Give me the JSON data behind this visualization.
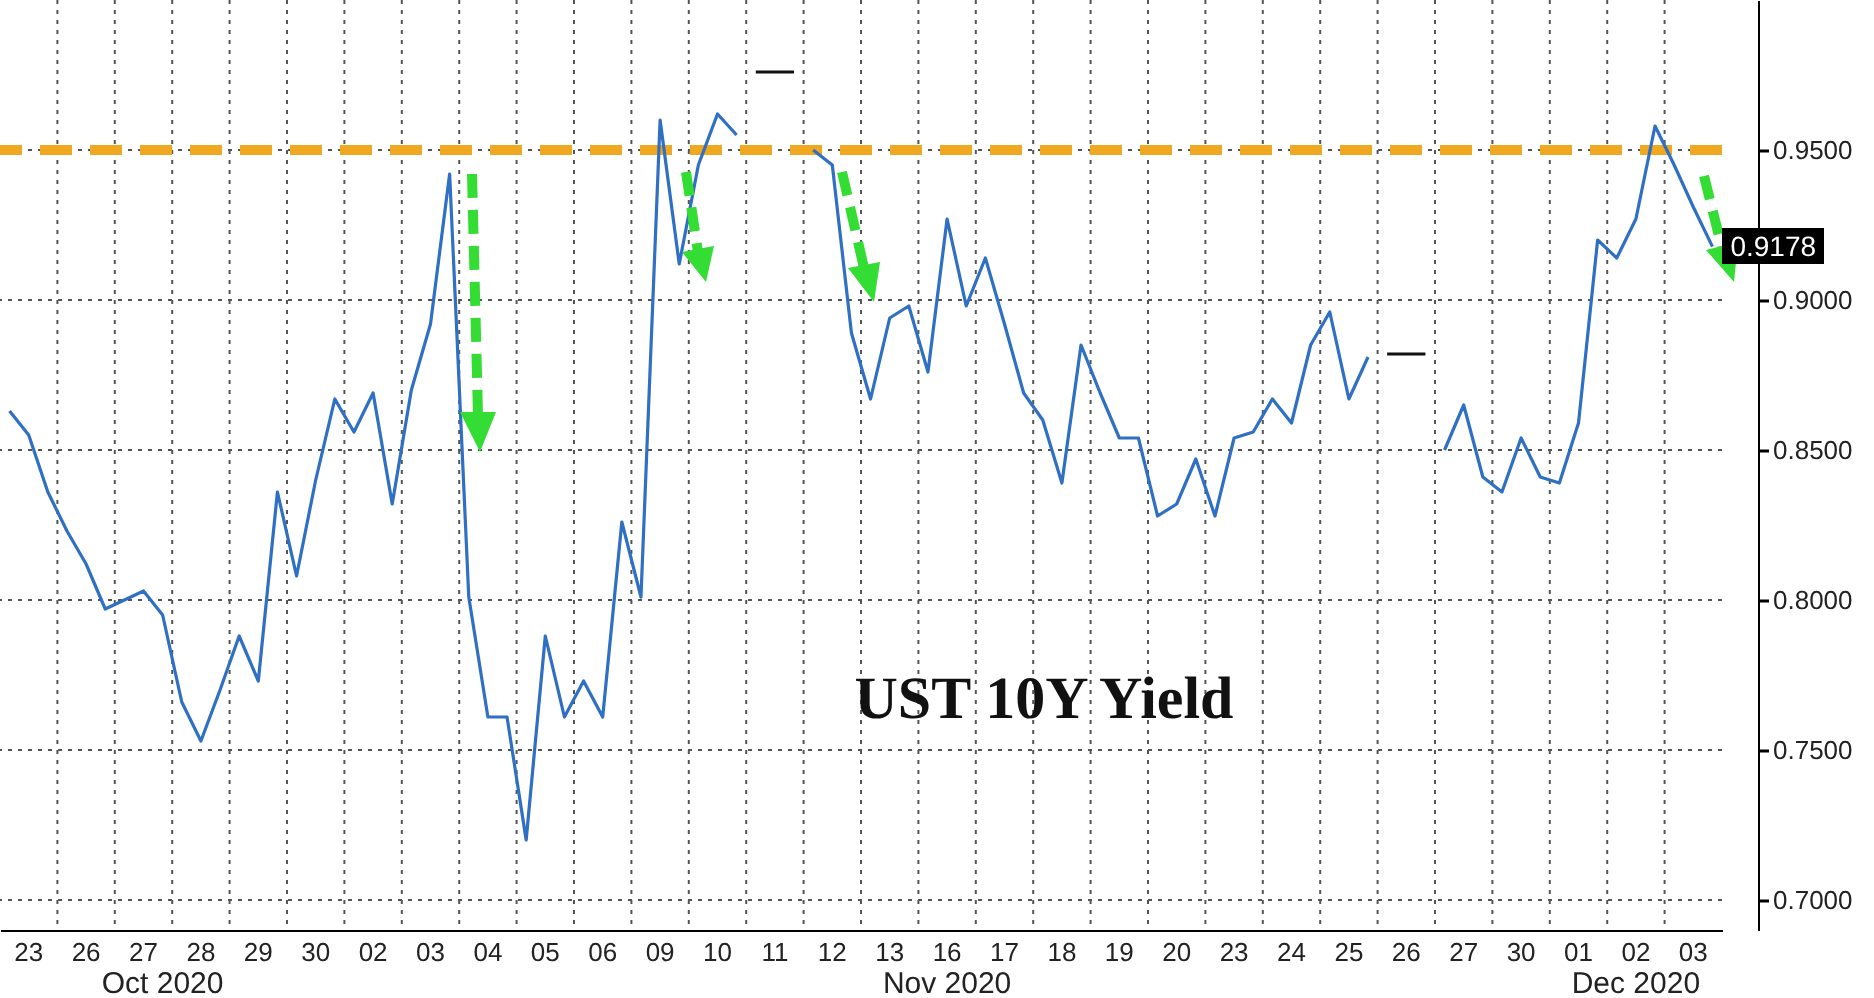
{
  "chart_data": {
    "type": "line",
    "annotations": [
      "UST 10Y Yield",
      "Oct 2020",
      "Nov 2020",
      "Dec 2020"
    ],
    "categories": [
      null,
      "23",
      null,
      null,
      "26",
      null,
      null,
      "27",
      null,
      null,
      "28",
      null,
      null,
      "29",
      null,
      null,
      "30",
      null,
      null,
      "02",
      null,
      null,
      "03",
      null,
      null,
      "04",
      null,
      null,
      "05",
      null,
      null,
      "06",
      null,
      null,
      "09",
      null,
      null,
      "10",
      null,
      null,
      "11",
      null,
      null,
      "12",
      null,
      null,
      "13",
      null,
      null,
      "16",
      null,
      null,
      "17",
      null,
      null,
      "18",
      null,
      null,
      "19",
      null,
      null,
      "20",
      null,
      null,
      "23",
      null,
      null,
      "24",
      null,
      null,
      "25",
      null,
      null,
      "26",
      null,
      null,
      "27",
      null,
      null,
      "30",
      null,
      null,
      "01",
      null,
      null,
      "02",
      null,
      null,
      "03",
      null
    ],
    "ylim": [
      0.69,
      1.0
    ],
    "yticks": [
      {
        "value": 0.7,
        "label": "0.7000"
      },
      {
        "value": 0.75,
        "label": "0.7500"
      },
      {
        "value": 0.8,
        "label": "0.8000"
      },
      {
        "value": 0.85,
        "label": "0.8500"
      },
      {
        "value": 0.9,
        "label": "0.9000"
      },
      {
        "value": 0.95,
        "label": "0.9500"
      }
    ],
    "grid": true,
    "ref_lines": [
      {
        "axis": "y",
        "value": 0.95,
        "color": "#f0a820",
        "line_style": "dashed"
      }
    ],
    "series": [
      {
        "color": "#2f6fc4",
        "values": [
          0.863,
          0.855,
          0.836,
          0.823,
          0.812,
          0.797,
          0.8,
          0.803,
          0.795,
          0.766,
          0.753,
          0.77,
          0.788,
          0.773,
          0.836,
          0.808,
          0.84,
          0.867,
          0.856,
          0.869,
          0.832,
          0.87,
          0.892,
          0.942,
          0.801,
          0.761,
          0.761,
          0.72,
          0.788,
          0.761,
          0.773,
          0.761,
          0.826,
          0.801,
          0.96,
          0.912,
          0.945,
          0.962,
          0.955,
          null,
          null,
          null,
          0.95,
          0.945,
          0.889,
          0.867,
          0.894,
          0.898,
          0.876,
          0.927,
          0.898,
          0.914,
          0.892,
          0.869,
          0.86,
          0.839,
          0.885,
          0.869,
          0.854,
          0.854,
          0.828,
          0.832,
          0.847,
          0.828,
          0.854,
          0.856,
          0.867,
          0.859,
          0.885,
          0.896,
          0.867,
          0.881,
          null,
          null,
          null,
          0.85,
          0.865,
          0.841,
          0.836,
          0.854,
          0.841,
          0.839,
          0.859,
          0.92,
          0.914,
          0.927,
          0.958,
          0.945,
          0.931,
          0.9178
        ],
        "value_labels": [
          null,
          null,
          null,
          null,
          null,
          null,
          null,
          null,
          null,
          null,
          null,
          null,
          null,
          null,
          null,
          null,
          null,
          null,
          null,
          null,
          null,
          null,
          null,
          null,
          null,
          null,
          null,
          null,
          null,
          null,
          null,
          null,
          null,
          null,
          null,
          null,
          null,
          null,
          null,
          null,
          null,
          null,
          null,
          null,
          null,
          null,
          null,
          null,
          null,
          null,
          null,
          null,
          null,
          null,
          null,
          null,
          null,
          null,
          null,
          null,
          null,
          null,
          null,
          null,
          null,
          null,
          null,
          null,
          null,
          null,
          null,
          null,
          null,
          null,
          null,
          null,
          null,
          null,
          null,
          null,
          null,
          null,
          null,
          null,
          null,
          null,
          null,
          null,
          null,
          "0.9178"
        ]
      },
      {
        "color": "#111111",
        "values": [
          null,
          null,
          null,
          null,
          null,
          null,
          null,
          null,
          null,
          null,
          null,
          null,
          null,
          null,
          null,
          null,
          null,
          null,
          null,
          null,
          null,
          null,
          null,
          null,
          null,
          null,
          null,
          null,
          null,
          null,
          null,
          null,
          null,
          null,
          null,
          null,
          null,
          null,
          null,
          0.976,
          0.976,
          0.976,
          null,
          null,
          null,
          null,
          null,
          null,
          null,
          null,
          null,
          null,
          null,
          null,
          null,
          null,
          null,
          null,
          null,
          null,
          null,
          null,
          null,
          null,
          null,
          null,
          null,
          null,
          null,
          null,
          null,
          null,
          0.882,
          0.882,
          0.882,
          null,
          null,
          null,
          null,
          null,
          null,
          null,
          null,
          null,
          null,
          null,
          null,
          null,
          null,
          null
        ]
      }
    ]
  }
}
